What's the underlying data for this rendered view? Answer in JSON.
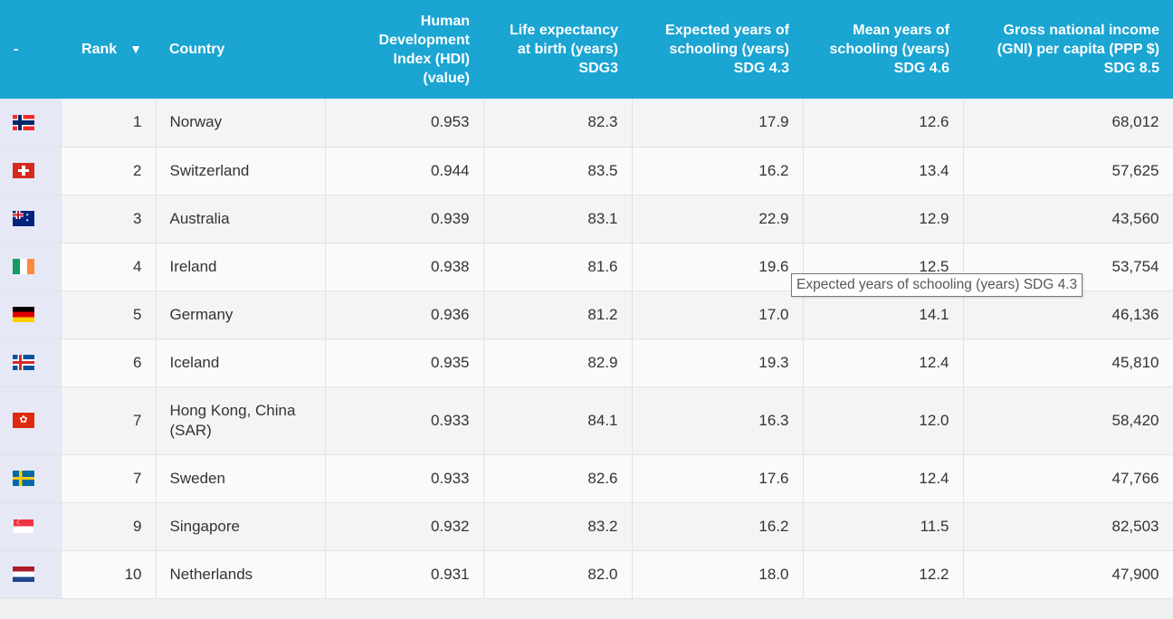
{
  "table": {
    "headers": {
      "flag": "-",
      "rank": "Rank",
      "sort_arrow": "▼",
      "country": "Country",
      "hdi": [
        "Human",
        "Development",
        "Index (HDI)",
        "(value)"
      ],
      "life": [
        "Life expectancy",
        "at birth (years)",
        "SDG3"
      ],
      "expected": [
        "Expected years of",
        "schooling (years)",
        "SDG 4.3"
      ],
      "mean": [
        "Mean years of",
        "schooling (years)",
        "SDG 4.6"
      ],
      "gni": [
        "Gross national income",
        "(GNI) per capita (PPP $)",
        "SDG 8.5"
      ]
    },
    "rows": [
      {
        "flag_icon": "norway-flag-icon",
        "rank": "1",
        "country": [
          "Norway"
        ],
        "hdi": "0.953",
        "life": "82.3",
        "expected": "17.9",
        "mean": "12.6",
        "gni": "68,012"
      },
      {
        "flag_icon": "switzerland-flag-icon",
        "rank": "2",
        "country": [
          "Switzerland"
        ],
        "hdi": "0.944",
        "life": "83.5",
        "expected": "16.2",
        "mean": "13.4",
        "gni": "57,625"
      },
      {
        "flag_icon": "australia-flag-icon",
        "rank": "3",
        "country": [
          "Australia"
        ],
        "hdi": "0.939",
        "life": "83.1",
        "expected": "22.9",
        "mean": "12.9",
        "gni": "43,560"
      },
      {
        "flag_icon": "ireland-flag-icon",
        "rank": "4",
        "country": [
          "Ireland"
        ],
        "hdi": "0.938",
        "life": "81.6",
        "expected": "19.6",
        "mean": "12.5",
        "gni": "53,754"
      },
      {
        "flag_icon": "germany-flag-icon",
        "rank": "5",
        "country": [
          "Germany"
        ],
        "hdi": "0.936",
        "life": "81.2",
        "expected": "17.0",
        "mean": "14.1",
        "gni": "46,136"
      },
      {
        "flag_icon": "iceland-flag-icon",
        "rank": "6",
        "country": [
          "Iceland"
        ],
        "hdi": "0.935",
        "life": "82.9",
        "expected": "19.3",
        "mean": "12.4",
        "gni": "45,810"
      },
      {
        "flag_icon": "hong-kong-flag-icon",
        "rank": "7",
        "country": [
          "Hong Kong, China",
          "(SAR)"
        ],
        "hdi": "0.933",
        "life": "84.1",
        "expected": "16.3",
        "mean": "12.0",
        "gni": "58,420"
      },
      {
        "flag_icon": "sweden-flag-icon",
        "rank": "7",
        "country": [
          "Sweden"
        ],
        "hdi": "0.933",
        "life": "82.6",
        "expected": "17.6",
        "mean": "12.4",
        "gni": "47,766"
      },
      {
        "flag_icon": "singapore-flag-icon",
        "rank": "9",
        "country": [
          "Singapore"
        ],
        "hdi": "0.932",
        "life": "83.2",
        "expected": "16.2",
        "mean": "11.5",
        "gni": "82,503"
      },
      {
        "flag_icon": "netherlands-flag-icon",
        "rank": "10",
        "country": [
          "Netherlands"
        ],
        "hdi": "0.931",
        "life": "82.0",
        "expected": "18.0",
        "mean": "12.2",
        "gni": "47,900"
      }
    ]
  },
  "tooltip": {
    "text": "Expected years of schooling (years) SDG 4.3"
  },
  "colors": {
    "header_bg": "#1aa5d2",
    "header_text": "#ffffff",
    "flag_column_bg": "#e6e8f6"
  }
}
